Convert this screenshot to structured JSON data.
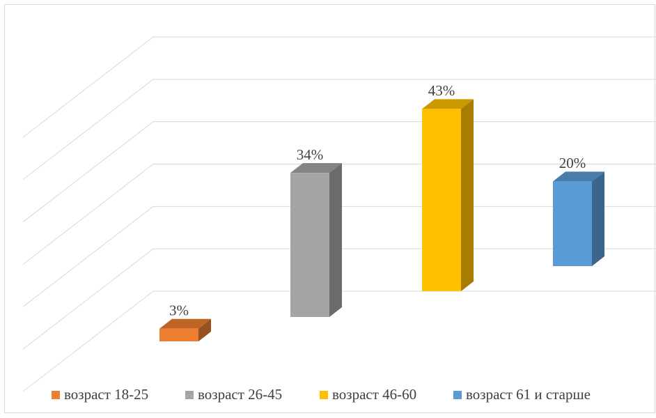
{
  "chart_data": {
    "type": "bar",
    "series": [
      {
        "name": "возраст 18-25",
        "color": "#ed7d31",
        "values": [
          3
        ],
        "value_labels": [
          "3%"
        ]
      },
      {
        "name": "возраст 26-45",
        "color": "#a5a5a5",
        "values": [
          34
        ],
        "value_labels": [
          "34%"
        ]
      },
      {
        "name": "возраст 46-60",
        "color": "#ffc000",
        "values": [
          43
        ],
        "value_labels": [
          "43%"
        ]
      },
      {
        "name": "возраст 61 и старше",
        "color": "#5b9bd5",
        "values": [
          20
        ],
        "value_labels": [
          "20%"
        ]
      }
    ],
    "ylim": [
      0,
      60
    ],
    "yticks": [
      0,
      10,
      20,
      30,
      40,
      50,
      60
    ],
    "grid": true,
    "legend": "bottom"
  }
}
